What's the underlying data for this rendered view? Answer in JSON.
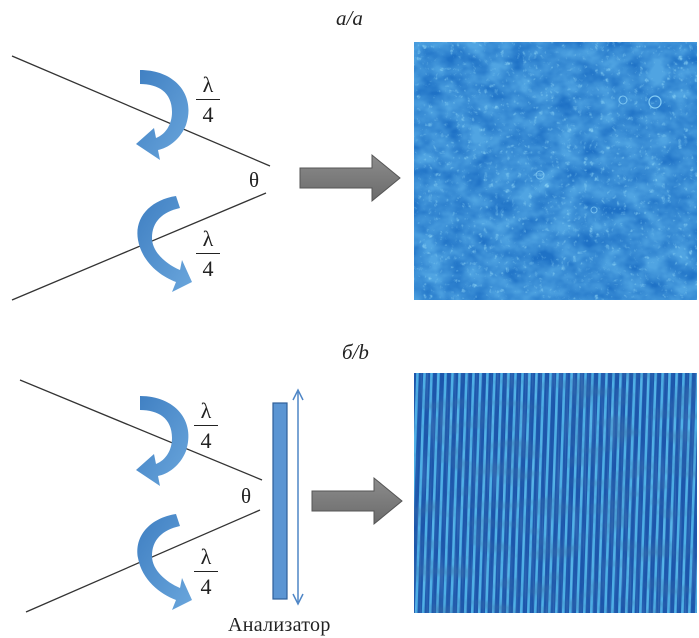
{
  "panels": [
    {
      "id": "a",
      "label": "a/a",
      "fraction_top": "λ",
      "fraction_bottom": "4",
      "angle_symbol": "θ",
      "has_analyzer": false,
      "image_colors": {
        "base": "#1f72c6",
        "light": "#45b8f2",
        "dark": "#0f4c9a"
      }
    },
    {
      "id": "b",
      "label": "б/b",
      "fraction_top": "λ",
      "fraction_bottom": "4",
      "angle_symbol": "θ",
      "has_analyzer": true,
      "analyzer_caption": "Анализатор",
      "image_colors": {
        "base": "#1e5fb8",
        "light": "#52c0f4",
        "dark": "#0d3d86"
      }
    }
  ],
  "colors": {
    "arrow_blue": "#4f8fd0",
    "arrow_gray": "#7f7f7f",
    "analyzer_blue": "#5b95d3",
    "line": "#333333"
  }
}
